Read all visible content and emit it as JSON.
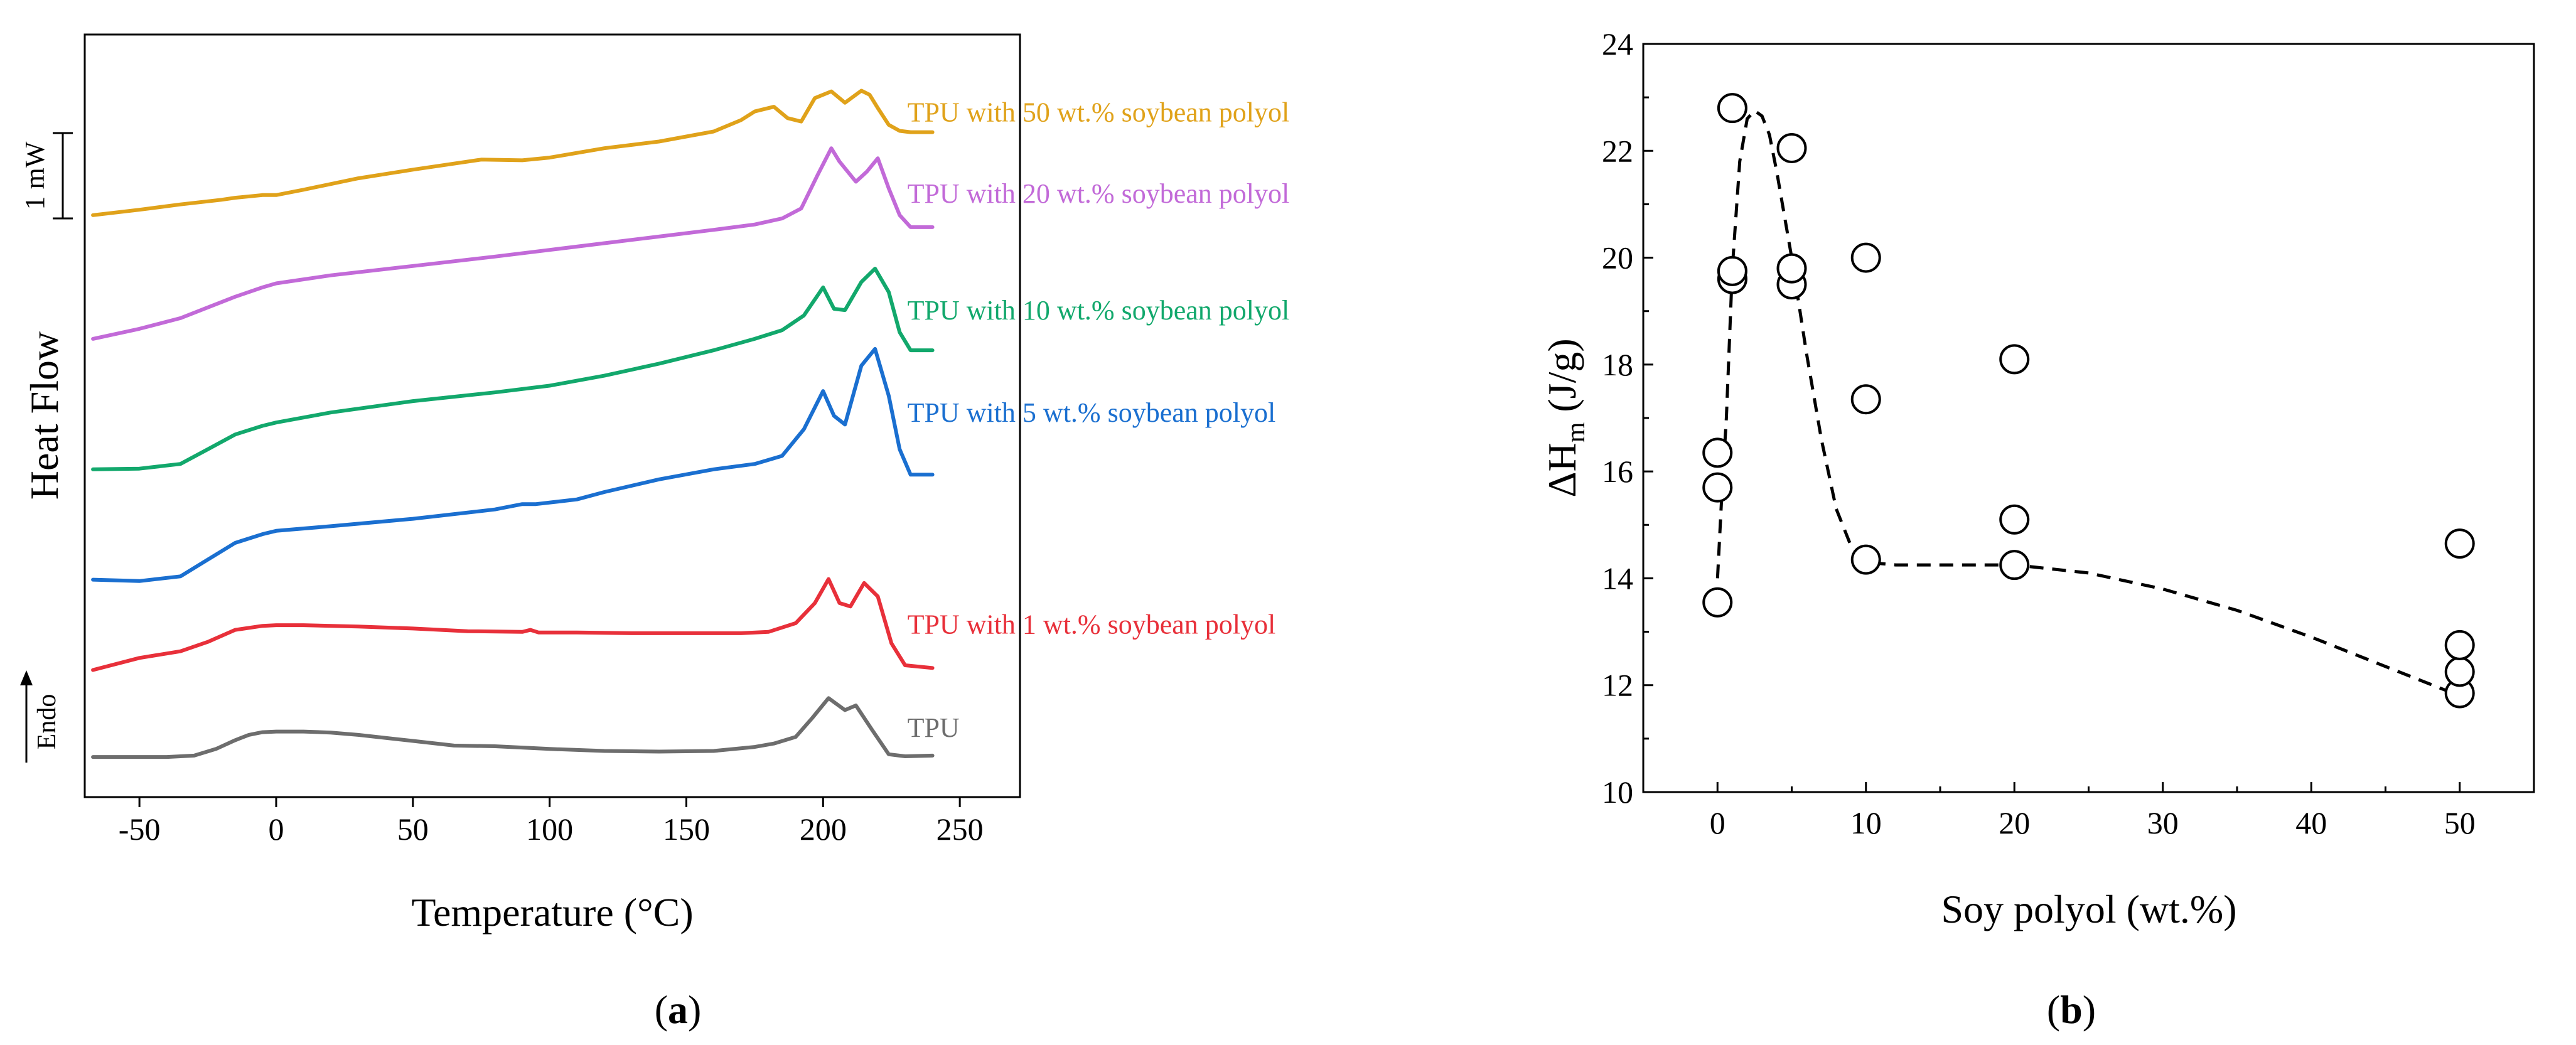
{
  "chart_data": [
    {
      "panel": "a",
      "type": "line",
      "xlabel": "Temperature (°C)",
      "ylabel": "Heat Flow",
      "xlim": [
        -70,
        272
      ],
      "xticks": [
        "-50",
        "0",
        "50",
        "100",
        "150",
        "200",
        "250"
      ],
      "xtick_values": [
        -50,
        0,
        50,
        100,
        150,
        200,
        250
      ],
      "scale_bar_label": "1 mW",
      "endo_label": "Endo",
      "series": [
        {
          "name": "TPU",
          "label": "TPU",
          "color": "#6d6d6d",
          "x": [
            -67,
            -40,
            -30,
            -22,
            -15,
            -10,
            -5,
            0,
            10,
            20,
            30,
            50,
            65,
            80,
            100,
            120,
            140,
            160,
            175,
            182,
            190,
            196,
            202,
            208,
            212,
            218,
            224,
            230,
            240
          ],
          "y": [
            0.0,
            0.0,
            0.02,
            0.12,
            0.25,
            0.33,
            0.37,
            0.38,
            0.38,
            0.365,
            0.33,
            0.24,
            0.17,
            0.16,
            0.12,
            0.09,
            0.08,
            0.09,
            0.15,
            0.2,
            0.3,
            0.58,
            0.88,
            0.7,
            0.77,
            0.4,
            0.04,
            0.01,
            0.02
          ]
        },
        {
          "name": "TPU with 1 wt.% soybean polyol",
          "label": "TPU with 1 wt.% soybean polyol",
          "color": "#e8303a",
          "x": [
            -67,
            -50,
            -35,
            -25,
            -15,
            -5,
            0,
            10,
            30,
            50,
            70,
            90,
            93,
            96,
            110,
            130,
            150,
            170,
            180,
            190,
            197,
            202,
            206,
            210,
            215,
            220,
            225,
            230,
            240
          ],
          "y": [
            1.3,
            1.48,
            1.58,
            1.72,
            1.9,
            1.96,
            1.97,
            1.97,
            1.95,
            1.92,
            1.88,
            1.87,
            1.9,
            1.86,
            1.86,
            1.85,
            1.85,
            1.85,
            1.87,
            2.0,
            2.3,
            2.66,
            2.3,
            2.25,
            2.6,
            2.4,
            1.7,
            1.37,
            1.33
          ]
        },
        {
          "name": "TPU with 5 wt.% soybean polyol",
          "label": "TPU with 5 wt.% soybean polyol",
          "color": "#1a6fd0",
          "x": [
            -67,
            -50,
            -35,
            -25,
            -15,
            -5,
            0,
            20,
            50,
            80,
            90,
            95,
            110,
            120,
            140,
            160,
            175,
            185,
            193,
            200,
            204,
            208,
            214,
            219,
            224,
            228,
            232,
            240
          ],
          "y": [
            2.65,
            2.63,
            2.7,
            2.95,
            3.2,
            3.33,
            3.38,
            3.45,
            3.56,
            3.7,
            3.78,
            3.78,
            3.85,
            3.96,
            4.15,
            4.3,
            4.38,
            4.5,
            4.9,
            5.47,
            5.1,
            4.97,
            5.85,
            6.1,
            5.4,
            4.6,
            4.22,
            4.22
          ]
        },
        {
          "name": "TPU with 10 wt.% soybean polyol",
          "label": "TPU with 10 wt.% soybean polyol",
          "color": "#12a86c",
          "x": [
            -67,
            -50,
            -35,
            -25,
            -15,
            -5,
            0,
            20,
            50,
            80,
            100,
            120,
            140,
            160,
            175,
            185,
            193,
            200,
            204,
            208,
            214,
            219,
            224,
            228,
            232,
            240
          ],
          "y": [
            4.3,
            4.31,
            4.38,
            4.6,
            4.82,
            4.95,
            5.0,
            5.15,
            5.32,
            5.45,
            5.55,
            5.7,
            5.88,
            6.08,
            6.25,
            6.38,
            6.6,
            7.02,
            6.7,
            6.68,
            7.1,
            7.3,
            6.95,
            6.35,
            6.08,
            6.08
          ]
        },
        {
          "name": "TPU with 20 wt.% soybean polyol",
          "label": "TPU with 20 wt.% soybean polyol",
          "color": "#c26ad8",
          "x": [
            -67,
            -50,
            -35,
            -25,
            -15,
            -5,
            0,
            20,
            50,
            80,
            100,
            120,
            140,
            160,
            175,
            185,
            192,
            198,
            203,
            206,
            212,
            216,
            220,
            224,
            228,
            232,
            240
          ],
          "y": [
            6.25,
            6.4,
            6.56,
            6.72,
            6.88,
            7.02,
            7.08,
            7.2,
            7.34,
            7.48,
            7.58,
            7.68,
            7.78,
            7.88,
            7.96,
            8.05,
            8.2,
            8.7,
            9.1,
            8.9,
            8.6,
            8.75,
            8.95,
            8.5,
            8.1,
            7.92,
            7.92
          ]
        },
        {
          "name": "TPU with 50 wt.% soybean polyol",
          "label": "TPU with 50 wt.% soybean polyol",
          "color": "#e0a21a",
          "x": [
            -67,
            -50,
            -35,
            -20,
            -15,
            -5,
            0,
            10,
            30,
            50,
            75,
            90,
            100,
            120,
            140,
            160,
            170,
            175,
            182,
            187,
            192,
            197,
            203,
            208,
            214,
            217,
            220,
            224,
            228,
            232,
            240
          ],
          "y": [
            8.1,
            8.18,
            8.26,
            8.33,
            8.36,
            8.4,
            8.4,
            8.48,
            8.65,
            8.78,
            8.93,
            8.92,
            8.96,
            9.1,
            9.2,
            9.35,
            9.52,
            9.65,
            9.72,
            9.55,
            9.5,
            9.85,
            9.95,
            9.78,
            9.96,
            9.9,
            9.7,
            9.45,
            9.36,
            9.34,
            9.34
          ]
        }
      ],
      "ylim": [
        -0.6,
        10.8
      ]
    },
    {
      "panel": "b",
      "type": "scatter",
      "xlabel": "Soy polyol (wt.%)",
      "ylabel_main": "ΔH",
      "ylabel_sub": "m",
      "ylabel_unit": " (J/g)",
      "xlim": [
        -5,
        55
      ],
      "ylim": [
        10,
        24
      ],
      "xticks": [
        "0",
        "10",
        "20",
        "30",
        "40",
        "50"
      ],
      "xtick_values": [
        0,
        10,
        20,
        30,
        40,
        50
      ],
      "yticks": [
        "10",
        "12",
        "14",
        "16",
        "18",
        "20",
        "22",
        "24"
      ],
      "ytick_values": [
        10,
        12,
        14,
        16,
        18,
        20,
        22,
        24
      ],
      "points": {
        "x": [
          0,
          0,
          0,
          1,
          1,
          1,
          5,
          5,
          5,
          10,
          10,
          10,
          20,
          20,
          20,
          50,
          50,
          50,
          50
        ],
        "y": [
          13.55,
          15.7,
          16.35,
          19.6,
          19.75,
          22.8,
          19.5,
          19.8,
          22.05,
          14.35,
          17.35,
          20.0,
          14.25,
          15.1,
          18.1,
          11.85,
          12.25,
          12.75,
          14.65
        ]
      },
      "trend": {
        "x": [
          0,
          0.3,
          0.6,
          1.0,
          1.5,
          2.0,
          2.5,
          3.0,
          3.5,
          4.0,
          5.0,
          6.0,
          7.0,
          8.0,
          9.0,
          10.0,
          12,
          15,
          20,
          25,
          30,
          35,
          40,
          45,
          50
        ],
        "y": [
          14.0,
          15.6,
          17.0,
          19.8,
          21.8,
          22.6,
          22.75,
          22.65,
          22.3,
          21.6,
          20.0,
          18.2,
          16.6,
          15.3,
          14.6,
          14.3,
          14.25,
          14.25,
          14.25,
          14.1,
          13.8,
          13.4,
          12.9,
          12.35,
          11.8
        ]
      }
    }
  ],
  "panel_labels": {
    "a": "a",
    "b": "b"
  }
}
